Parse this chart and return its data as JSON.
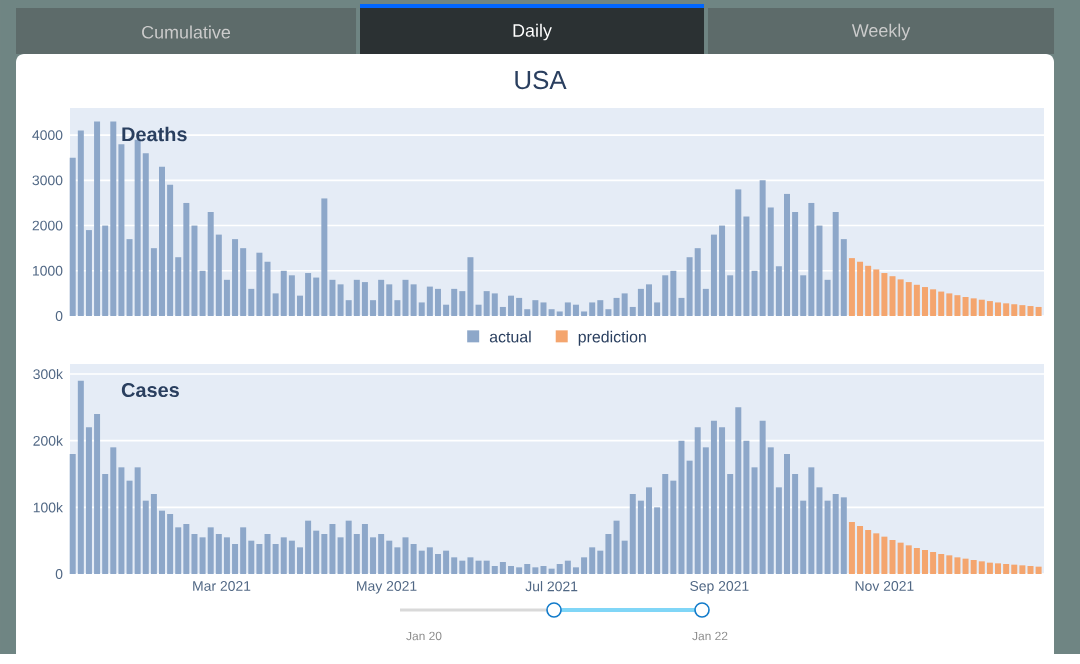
{
  "chart_data": [
    {
      "type": "bar",
      "title": "USA",
      "subtitle": "Deaths",
      "annotations": [
        "Cumulative",
        "Daily",
        "Weekly"
      ],
      "xlim": [
        "2021-01-04",
        "2021-12-30"
      ],
      "tick_labels": "y",
      "ylim": [
        0,
        4600
      ],
      "yticks": [
        0,
        1000,
        2000,
        3000,
        4000
      ],
      "grid": "y",
      "legend": "bottom",
      "series": [
        {
          "name": "actual",
          "color": "#8da7c9",
          "x": [
            "2021-01-05",
            "2021-01-08",
            "2021-01-11",
            "2021-01-14",
            "2021-01-17",
            "2021-01-20",
            "2021-01-23",
            "2021-01-26",
            "2021-01-29",
            "2021-02-01",
            "2021-02-04",
            "2021-02-07",
            "2021-02-10",
            "2021-02-13",
            "2021-02-16",
            "2021-02-19",
            "2021-02-22",
            "2021-02-25",
            "2021-02-28",
            "2021-03-03",
            "2021-03-06",
            "2021-03-09",
            "2021-03-12",
            "2021-03-15",
            "2021-03-18",
            "2021-03-21",
            "2021-03-24",
            "2021-03-27",
            "2021-03-30",
            "2021-04-02",
            "2021-04-05",
            "2021-04-08",
            "2021-04-11",
            "2021-04-14",
            "2021-04-17",
            "2021-04-20",
            "2021-04-23",
            "2021-04-26",
            "2021-04-29",
            "2021-05-02",
            "2021-05-05",
            "2021-05-08",
            "2021-05-11",
            "2021-05-14",
            "2021-05-17",
            "2021-05-20",
            "2021-05-23",
            "2021-05-26",
            "2021-05-29",
            "2021-06-01",
            "2021-06-04",
            "2021-06-07",
            "2021-06-10",
            "2021-06-13",
            "2021-06-16",
            "2021-06-19",
            "2021-06-22",
            "2021-06-25",
            "2021-06-28",
            "2021-07-01",
            "2021-07-04",
            "2021-07-07",
            "2021-07-10",
            "2021-07-13",
            "2021-07-16",
            "2021-07-19",
            "2021-07-22",
            "2021-07-25",
            "2021-07-28",
            "2021-07-31",
            "2021-08-03",
            "2021-08-06",
            "2021-08-09",
            "2021-08-12",
            "2021-08-15",
            "2021-08-18",
            "2021-08-21",
            "2021-08-24",
            "2021-08-27",
            "2021-08-30",
            "2021-09-02",
            "2021-09-05",
            "2021-09-08",
            "2021-09-11",
            "2021-09-14",
            "2021-09-17",
            "2021-09-20",
            "2021-09-23",
            "2021-09-26",
            "2021-09-29",
            "2021-10-02",
            "2021-10-05",
            "2021-10-08",
            "2021-10-11",
            "2021-10-14",
            "2021-10-17"
          ],
          "values": [
            3500,
            4100,
            1900,
            4300,
            2000,
            4300,
            3800,
            1700,
            3900,
            3600,
            1500,
            3300,
            2900,
            1300,
            2500,
            2000,
            1000,
            2300,
            1800,
            800,
            1700,
            1500,
            600,
            1400,
            1200,
            500,
            1000,
            900,
            450,
            950,
            850,
            2600,
            800,
            700,
            350,
            800,
            750,
            350,
            800,
            700,
            350,
            800,
            700,
            300,
            650,
            600,
            250,
            600,
            550,
            1300,
            250,
            550,
            500,
            200,
            450,
            400,
            150,
            350,
            300,
            150,
            100,
            300,
            250,
            100,
            300,
            350,
            150,
            400,
            500,
            200,
            600,
            700,
            300,
            900,
            1000,
            400,
            1300,
            1500,
            600,
            1800,
            2000,
            900,
            2800,
            2200,
            1000,
            3000,
            2400,
            1100,
            2700,
            2300,
            900,
            2500,
            2000,
            800,
            2300,
            1700
          ]
        },
        {
          "name": "prediction",
          "color": "#f4a56e",
          "x": [
            "2021-10-20",
            "2021-10-23",
            "2021-10-26",
            "2021-10-29",
            "2021-11-01",
            "2021-11-04",
            "2021-11-07",
            "2021-11-10",
            "2021-11-13",
            "2021-11-16",
            "2021-11-19",
            "2021-11-22",
            "2021-11-25",
            "2021-11-28",
            "2021-12-01",
            "2021-12-04",
            "2021-12-07",
            "2021-12-10",
            "2021-12-13",
            "2021-12-16",
            "2021-12-19",
            "2021-12-22",
            "2021-12-25",
            "2021-12-28"
          ],
          "values": [
            1280,
            1200,
            1110,
            1030,
            950,
            880,
            810,
            750,
            690,
            640,
            590,
            540,
            500,
            460,
            420,
            390,
            360,
            330,
            300,
            280,
            260,
            240,
            220,
            200
          ]
        }
      ]
    },
    {
      "type": "bar",
      "title": "Cases",
      "annotations": [
        "Jan 20",
        "Jan 22"
      ],
      "xlim": [
        "2021-01-04",
        "2021-12-30"
      ],
      "xticks": [
        {
          "value": "2021-03-01",
          "label": "Mar 2021"
        },
        {
          "value": "2021-05-01",
          "label": "May 2021"
        },
        {
          "value": "2021-07-01",
          "label": "Jul 2021"
        },
        {
          "value": "2021-09-01",
          "label": "Sep 2021"
        },
        {
          "value": "2021-11-01",
          "label": "Nov 2021"
        }
      ],
      "ylim": [
        0,
        315000
      ],
      "yticks": [
        0,
        {
          "value": 100000,
          "label": "100k"
        },
        {
          "value": 200000,
          "label": "200k"
        },
        {
          "value": 300000,
          "label": "300k"
        }
      ],
      "grid": "y",
      "series": [
        {
          "color": "#8da7c9",
          "x": [
            "2021-01-05",
            "2021-01-08",
            "2021-01-11",
            "2021-01-14",
            "2021-01-17",
            "2021-01-20",
            "2021-01-23",
            "2021-01-26",
            "2021-01-29",
            "2021-02-01",
            "2021-02-04",
            "2021-02-07",
            "2021-02-10",
            "2021-02-13",
            "2021-02-16",
            "2021-02-19",
            "2021-02-22",
            "2021-02-25",
            "2021-02-28",
            "2021-03-03",
            "2021-03-06",
            "2021-03-09",
            "2021-03-12",
            "2021-03-15",
            "2021-03-18",
            "2021-03-21",
            "2021-03-24",
            "2021-03-27",
            "2021-03-30",
            "2021-04-02",
            "2021-04-05",
            "2021-04-08",
            "2021-04-11",
            "2021-04-14",
            "2021-04-17",
            "2021-04-20",
            "2021-04-23",
            "2021-04-26",
            "2021-04-29",
            "2021-05-02",
            "2021-05-05",
            "2021-05-08",
            "2021-05-11",
            "2021-05-14",
            "2021-05-17",
            "2021-05-20",
            "2021-05-23",
            "2021-05-26",
            "2021-05-29",
            "2021-06-01",
            "2021-06-04",
            "2021-06-07",
            "2021-06-10",
            "2021-06-13",
            "2021-06-16",
            "2021-06-19",
            "2021-06-22",
            "2021-06-25",
            "2021-06-28",
            "2021-07-01",
            "2021-07-04",
            "2021-07-07",
            "2021-07-10",
            "2021-07-13",
            "2021-07-16",
            "2021-07-19",
            "2021-07-22",
            "2021-07-25",
            "2021-07-28",
            "2021-07-31",
            "2021-08-03",
            "2021-08-06",
            "2021-08-09",
            "2021-08-12",
            "2021-08-15",
            "2021-08-18",
            "2021-08-21",
            "2021-08-24",
            "2021-08-27",
            "2021-08-30",
            "2021-09-02",
            "2021-09-05",
            "2021-09-08",
            "2021-09-11",
            "2021-09-14",
            "2021-09-17",
            "2021-09-20",
            "2021-09-23",
            "2021-09-26",
            "2021-09-29",
            "2021-10-02",
            "2021-10-05",
            "2021-10-08",
            "2021-10-11",
            "2021-10-14",
            "2021-10-17"
          ],
          "values": [
            180000,
            290000,
            220000,
            240000,
            150000,
            190000,
            160000,
            140000,
            160000,
            110000,
            120000,
            95000,
            90000,
            70000,
            75000,
            60000,
            55000,
            70000,
            60000,
            55000,
            45000,
            70000,
            50000,
            45000,
            60000,
            45000,
            55000,
            50000,
            40000,
            80000,
            65000,
            60000,
            75000,
            55000,
            80000,
            60000,
            75000,
            55000,
            60000,
            50000,
            40000,
            55000,
            45000,
            35000,
            40000,
            30000,
            35000,
            25000,
            20000,
            25000,
            20000,
            20000,
            12000,
            18000,
            12000,
            10000,
            15000,
            10000,
            12000,
            8000,
            15000,
            20000,
            10000,
            25000,
            40000,
            35000,
            60000,
            80000,
            50000,
            120000,
            110000,
            130000,
            100000,
            150000,
            140000,
            200000,
            170000,
            220000,
            190000,
            230000,
            220000,
            150000,
            250000,
            200000,
            160000,
            230000,
            190000,
            130000,
            180000,
            150000,
            110000,
            160000,
            130000,
            110000,
            120000,
            115000
          ]
        },
        {
          "color": "#f4a56e",
          "x": [
            "2021-10-20",
            "2021-10-23",
            "2021-10-26",
            "2021-10-29",
            "2021-11-01",
            "2021-11-04",
            "2021-11-07",
            "2021-11-10",
            "2021-11-13",
            "2021-11-16",
            "2021-11-19",
            "2021-11-22",
            "2021-11-25",
            "2021-11-28",
            "2021-12-01",
            "2021-12-04",
            "2021-12-07",
            "2021-12-10",
            "2021-12-13",
            "2021-12-16",
            "2021-12-19",
            "2021-12-22",
            "2021-12-25",
            "2021-12-28"
          ],
          "values": [
            78000,
            72000,
            66000,
            61000,
            56000,
            51000,
            47000,
            43000,
            39000,
            36000,
            33000,
            30000,
            28000,
            25000,
            23000,
            21000,
            19000,
            17000,
            16000,
            15000,
            14000,
            13000,
            12000,
            11000
          ]
        }
      ]
    }
  ]
}
